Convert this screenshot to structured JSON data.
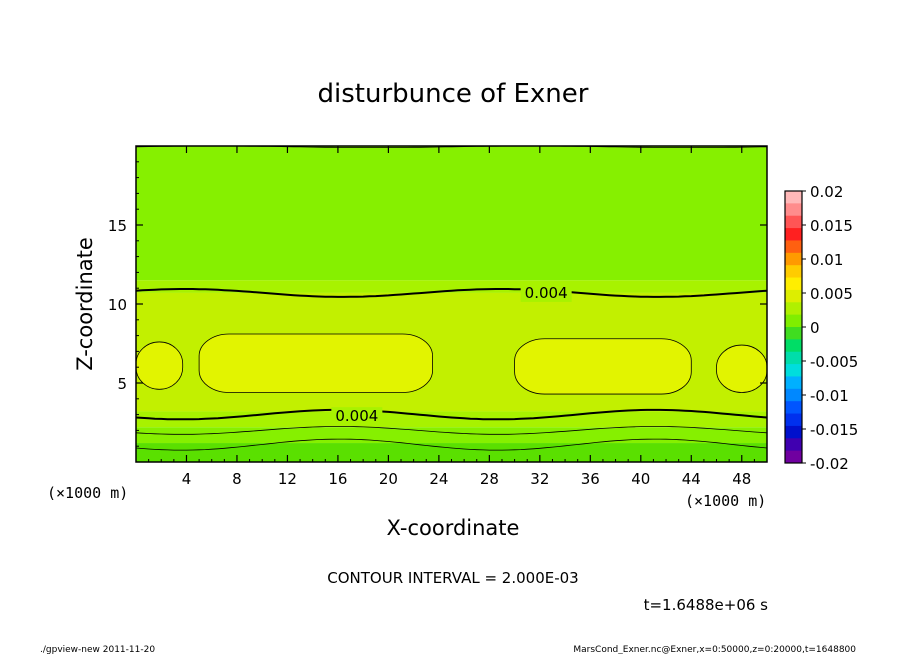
{
  "chart_data": {
    "type": "heatmap",
    "title": "disturbunce of Exner",
    "xlabel": "X-coordinate",
    "ylabel": "Z-coordinate",
    "x_unit": "(×1000 m)",
    "y_unit": "(×1000 m)",
    "xlim": [
      0,
      50
    ],
    "ylim": [
      0,
      20
    ],
    "x_ticks": [
      4,
      8,
      12,
      16,
      20,
      24,
      28,
      32,
      36,
      40,
      44,
      48
    ],
    "y_ticks": [
      5,
      10,
      15
    ],
    "contour_interval_text": "CONTOUR INTERVAL = 2.000E-03",
    "time_text": "t=1.6488e+06 s",
    "contour_labels": [
      {
        "x": 32.5,
        "z": 10.7,
        "text": "0.004"
      },
      {
        "x": 17.5,
        "z": 2.9,
        "text": "0.004"
      }
    ],
    "colorbar": {
      "range": [
        -0.02,
        0.02
      ],
      "labels": [
        "0.02",
        "0.015",
        "0.01",
        "0.005",
        "0",
        "-0.005",
        "-0.01",
        "-0.015",
        "-0.02"
      ],
      "colors": [
        "#ffb8b8",
        "#ff8c8c",
        "#ff5555",
        "#ff2020",
        "#ff6010",
        "#ff9a00",
        "#ffcc00",
        "#ffee00",
        "#ddee00",
        "#b0f000",
        "#80ee00",
        "#40dd20",
        "#00dd66",
        "#00ddaa",
        "#00dddd",
        "#00b0ff",
        "#0088ff",
        "#0055ff",
        "#0030ee",
        "#0010cc",
        "#4000b0",
        "#7000a0"
      ]
    },
    "field_bands": [
      {
        "z_range": [
          11.5,
          20
        ],
        "value": 0.002,
        "color": "#86f000"
      },
      {
        "z_range": [
          10.7,
          11.5
        ],
        "value": 0.003,
        "color": "#a8f200"
      },
      {
        "z_range": [
          3.2,
          10.7
        ],
        "value": 0.005,
        "color": "#c2f000"
      },
      {
        "z_range": [
          2.2,
          3.2
        ],
        "value": 0.003,
        "color": "#a8f200"
      },
      {
        "z_range": [
          1.2,
          2.2
        ],
        "value": 0.002,
        "color": "#86f000"
      },
      {
        "z_range": [
          0,
          1.2
        ],
        "value": 0.0,
        "color": "#5ae000"
      }
    ],
    "max_regions": [
      {
        "x_range": [
          0,
          3.7
        ],
        "z_range": [
          4.6,
          7.6
        ],
        "value": 0.006,
        "color": "#e2f400"
      },
      {
        "x_range": [
          5.0,
          23.5
        ],
        "z_range": [
          4.4,
          8.1
        ],
        "value": 0.006,
        "color": "#e2f400"
      },
      {
        "x_range": [
          30.0,
          44.0
        ],
        "z_range": [
          4.3,
          7.8
        ],
        "value": 0.006,
        "color": "#e2f400"
      },
      {
        "x_range": [
          46.0,
          50.0
        ],
        "z_range": [
          4.4,
          7.4
        ],
        "value": 0.006,
        "color": "#e2f400"
      }
    ]
  },
  "footer": {
    "left": "./gpview-new   2011-11-20",
    "right": "MarsCond_Exner.nc@Exner,x=0:50000,z=0:20000,t=1648800"
  }
}
